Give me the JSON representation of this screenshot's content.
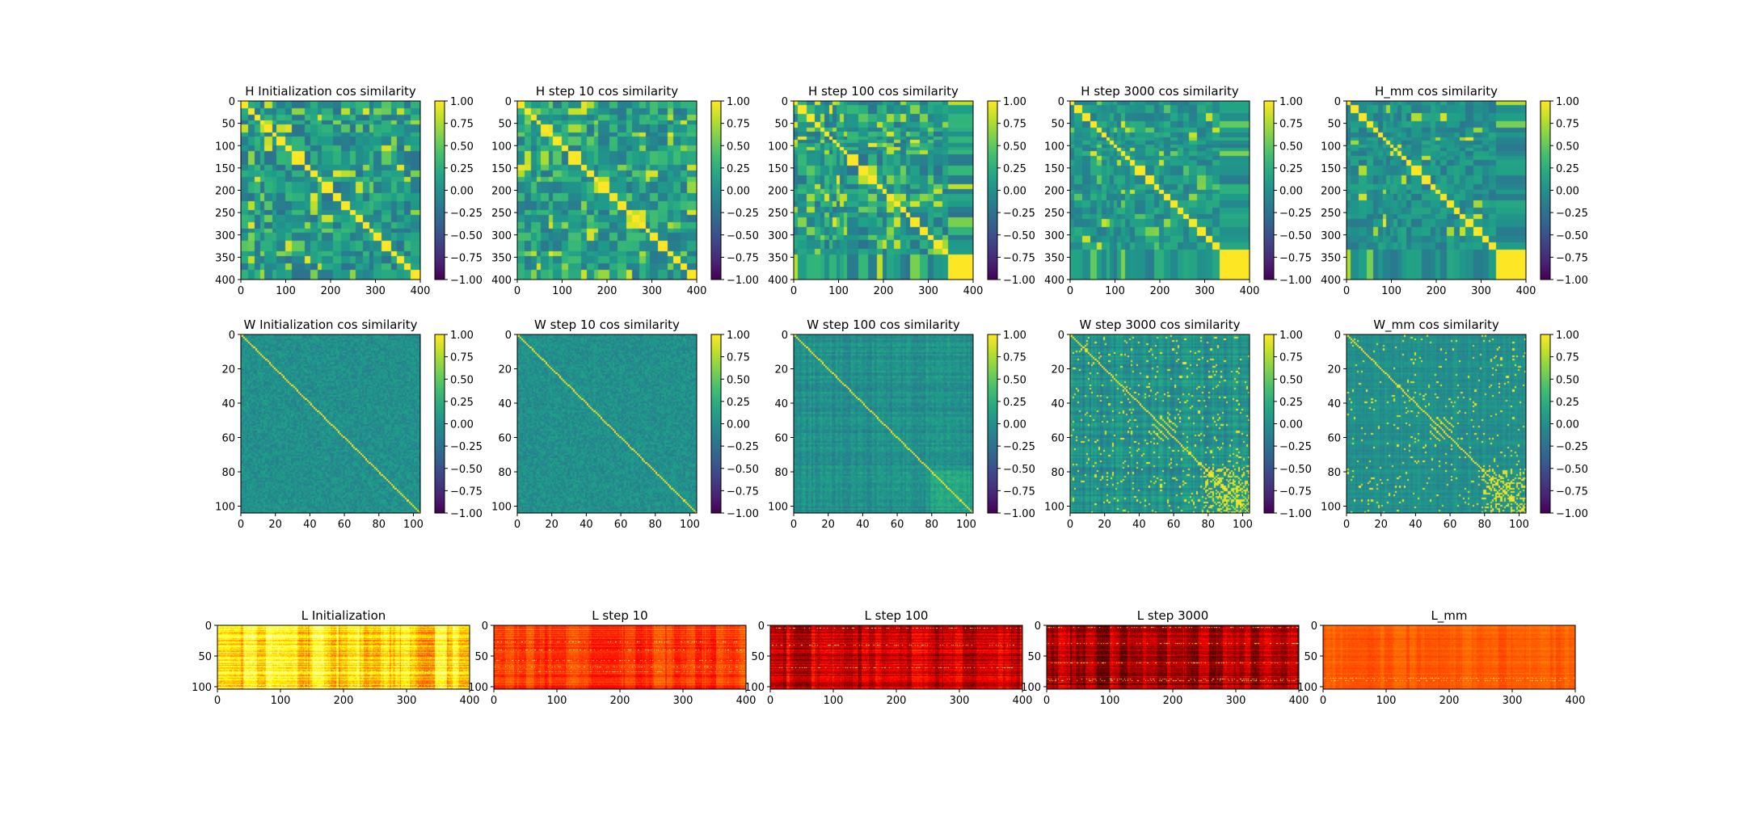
{
  "figure": {
    "row_labels": [
      "H",
      "W",
      "L"
    ]
  },
  "chart_data": [
    {
      "type": "heatmap",
      "title": "H Initialization cos similarity",
      "matrix": "H",
      "stage": "init",
      "xlim": [
        0,
        400
      ],
      "ylim": [
        400,
        0
      ],
      "xticks": [
        "0",
        "100",
        "200",
        "300",
        "400"
      ],
      "yticks": [
        "0",
        "50",
        "100",
        "150",
        "200",
        "250",
        "300",
        "350",
        "400"
      ],
      "colormap": "viridis",
      "clim": [
        -1.0,
        1.0
      ],
      "colorbar_ticks": [
        "1.00",
        "0.75",
        "0.50",
        "0.25",
        "0.00",
        "−0.25",
        "−0.50",
        "−0.75",
        "−1.00"
      ]
    },
    {
      "type": "heatmap",
      "title": "H step 10 cos similarity",
      "matrix": "H",
      "stage": "s10",
      "xlim": [
        0,
        400
      ],
      "ylim": [
        400,
        0
      ],
      "xticks": [
        "0",
        "100",
        "200",
        "300",
        "400"
      ],
      "yticks": [
        "0",
        "50",
        "100",
        "150",
        "200",
        "250",
        "300",
        "350",
        "400"
      ],
      "colormap": "viridis",
      "clim": [
        -1.0,
        1.0
      ],
      "colorbar_ticks": [
        "1.00",
        "0.75",
        "0.50",
        "0.25",
        "0.00",
        "−0.25",
        "−0.50",
        "−0.75",
        "−1.00"
      ]
    },
    {
      "type": "heatmap",
      "title": "H step 100 cos similarity",
      "matrix": "H",
      "stage": "s100",
      "xlim": [
        0,
        400
      ],
      "ylim": [
        400,
        0
      ],
      "xticks": [
        "0",
        "100",
        "200",
        "300",
        "400"
      ],
      "yticks": [
        "0",
        "50",
        "100",
        "150",
        "200",
        "250",
        "300",
        "350",
        "400"
      ],
      "colormap": "viridis",
      "clim": [
        -1.0,
        1.0
      ],
      "colorbar_ticks": [
        "1.00",
        "0.75",
        "0.50",
        "0.25",
        "0.00",
        "−0.25",
        "−0.50",
        "−0.75",
        "−1.00"
      ]
    },
    {
      "type": "heatmap",
      "title": "H step 3000 cos similarity",
      "matrix": "H",
      "stage": "s3000",
      "xlim": [
        0,
        400
      ],
      "ylim": [
        400,
        0
      ],
      "xticks": [
        "0",
        "100",
        "200",
        "300",
        "400"
      ],
      "yticks": [
        "0",
        "50",
        "100",
        "150",
        "200",
        "250",
        "300",
        "350",
        "400"
      ],
      "colormap": "viridis",
      "clim": [
        -1.0,
        1.0
      ],
      "colorbar_ticks": [
        "1.00",
        "0.75",
        "0.50",
        "0.25",
        "0.00",
        "−0.25",
        "−0.50",
        "−0.75",
        "−1.00"
      ]
    },
    {
      "type": "heatmap",
      "title": "H_mm cos similarity",
      "matrix": "H",
      "stage": "mm",
      "xlim": [
        0,
        400
      ],
      "ylim": [
        400,
        0
      ],
      "xticks": [
        "0",
        "100",
        "200",
        "300",
        "400"
      ],
      "yticks": [
        "0",
        "50",
        "100",
        "150",
        "200",
        "250",
        "300",
        "350",
        "400"
      ],
      "colormap": "viridis",
      "clim": [
        -1.0,
        1.0
      ],
      "colorbar_ticks": [
        "1.00",
        "0.75",
        "0.50",
        "0.25",
        "0.00",
        "−0.25",
        "−0.50",
        "−0.75",
        "−1.00"
      ]
    },
    {
      "type": "heatmap",
      "title": "W Initialization cos similarity",
      "matrix": "W",
      "stage": "init",
      "xlim": [
        0,
        104
      ],
      "ylim": [
        104,
        0
      ],
      "xticks": [
        "0",
        "20",
        "40",
        "60",
        "80",
        "100"
      ],
      "yticks": [
        "0",
        "20",
        "40",
        "60",
        "80",
        "100"
      ],
      "colormap": "viridis",
      "clim": [
        -1.0,
        1.0
      ],
      "colorbar_ticks": [
        "1.00",
        "0.75",
        "0.50",
        "0.25",
        "0.00",
        "−0.25",
        "−0.50",
        "−0.75",
        "−1.00"
      ]
    },
    {
      "type": "heatmap",
      "title": "W step 10 cos similarity",
      "matrix": "W",
      "stage": "s10",
      "xlim": [
        0,
        104
      ],
      "ylim": [
        104,
        0
      ],
      "xticks": [
        "0",
        "20",
        "40",
        "60",
        "80",
        "100"
      ],
      "yticks": [
        "0",
        "20",
        "40",
        "60",
        "80",
        "100"
      ],
      "colormap": "viridis",
      "clim": [
        -1.0,
        1.0
      ],
      "colorbar_ticks": [
        "1.00",
        "0.75",
        "0.50",
        "0.25",
        "0.00",
        "−0.25",
        "−0.50",
        "−0.75",
        "−1.00"
      ]
    },
    {
      "type": "heatmap",
      "title": "W step 100 cos similarity",
      "matrix": "W",
      "stage": "s100",
      "xlim": [
        0,
        104
      ],
      "ylim": [
        104,
        0
      ],
      "xticks": [
        "0",
        "20",
        "40",
        "60",
        "80",
        "100"
      ],
      "yticks": [
        "0",
        "20",
        "40",
        "60",
        "80",
        "100"
      ],
      "colormap": "viridis",
      "clim": [
        -1.0,
        1.0
      ],
      "colorbar_ticks": [
        "1.00",
        "0.75",
        "0.50",
        "0.25",
        "0.00",
        "−0.25",
        "−0.50",
        "−0.75",
        "−1.00"
      ]
    },
    {
      "type": "heatmap",
      "title": "W step 3000 cos similarity",
      "matrix": "W",
      "stage": "s3000",
      "xlim": [
        0,
        104
      ],
      "ylim": [
        104,
        0
      ],
      "xticks": [
        "0",
        "20",
        "40",
        "60",
        "80",
        "100"
      ],
      "yticks": [
        "0",
        "20",
        "40",
        "60",
        "80",
        "100"
      ],
      "colormap": "viridis",
      "clim": [
        -1.0,
        1.0
      ],
      "colorbar_ticks": [
        "1.00",
        "0.75",
        "0.50",
        "0.25",
        "0.00",
        "−0.25",
        "−0.50",
        "−0.75",
        "−1.00"
      ]
    },
    {
      "type": "heatmap",
      "title": "W_mm cos similarity",
      "matrix": "W",
      "stage": "mm",
      "xlim": [
        0,
        104
      ],
      "ylim": [
        104,
        0
      ],
      "xticks": [
        "0",
        "20",
        "40",
        "60",
        "80",
        "100"
      ],
      "yticks": [
        "0",
        "20",
        "40",
        "60",
        "80",
        "100"
      ],
      "colormap": "viridis",
      "clim": [
        -1.0,
        1.0
      ],
      "colorbar_ticks": [
        "1.00",
        "0.75",
        "0.50",
        "0.25",
        "0.00",
        "−0.25",
        "−0.50",
        "−0.75",
        "−1.00"
      ]
    },
    {
      "type": "heatmap",
      "title": "L Initialization",
      "matrix": "L",
      "stage": "init",
      "xlim": [
        0,
        400
      ],
      "ylim": [
        104,
        0
      ],
      "xticks": [
        "0",
        "100",
        "200",
        "300",
        "400"
      ],
      "yticks": [
        "0",
        "50",
        "100"
      ],
      "colormap": "hot"
    },
    {
      "type": "heatmap",
      "title": "L step 10",
      "matrix": "L",
      "stage": "s10",
      "xlim": [
        0,
        400
      ],
      "ylim": [
        104,
        0
      ],
      "xticks": [
        "0",
        "100",
        "200",
        "300",
        "400"
      ],
      "yticks": [
        "0",
        "50",
        "100"
      ],
      "colormap": "hot"
    },
    {
      "type": "heatmap",
      "title": "L step 100",
      "matrix": "L",
      "stage": "s100",
      "xlim": [
        0,
        400
      ],
      "ylim": [
        104,
        0
      ],
      "xticks": [
        "0",
        "100",
        "200",
        "300",
        "400"
      ],
      "yticks": [
        "0",
        "50",
        "100"
      ],
      "colormap": "hot"
    },
    {
      "type": "heatmap",
      "title": "L step 3000",
      "matrix": "L",
      "stage": "s3000",
      "xlim": [
        0,
        400
      ],
      "ylim": [
        104,
        0
      ],
      "xticks": [
        "0",
        "100",
        "200",
        "300",
        "400"
      ],
      "yticks": [
        "0",
        "50",
        "100"
      ],
      "colormap": "hot"
    },
    {
      "type": "heatmap",
      "title": "L_mm",
      "matrix": "L",
      "stage": "mm",
      "xlim": [
        0,
        400
      ],
      "ylim": [
        104,
        0
      ],
      "xticks": [
        "0",
        "100",
        "200",
        "300",
        "400"
      ],
      "yticks": [
        "0",
        "50",
        "100"
      ],
      "colormap": "hot"
    }
  ]
}
